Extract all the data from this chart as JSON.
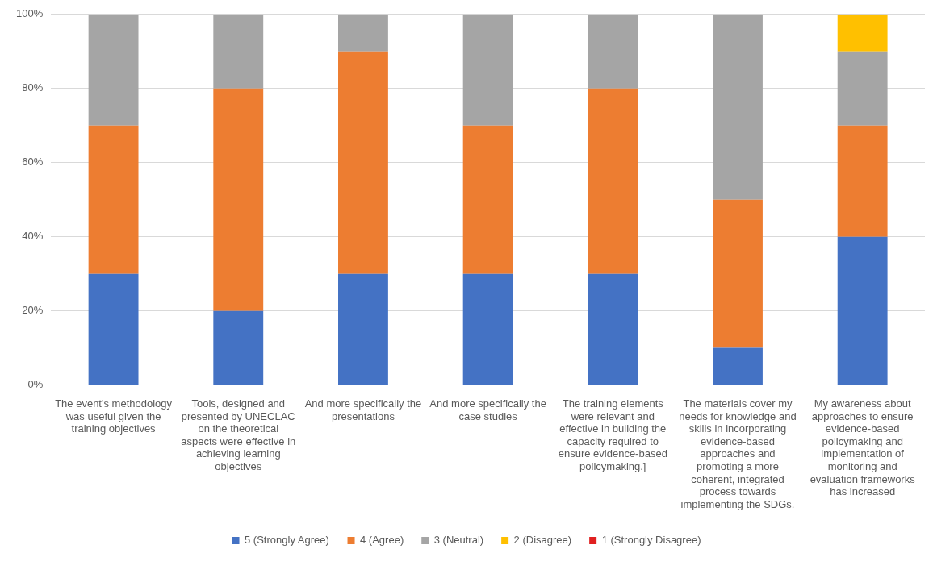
{
  "chart_data": {
    "type": "bar",
    "stacked": true,
    "categories": [
      "The event's methodology was useful given the training objectives",
      "Tools, designed and presented by UNECLAC on the theoretical aspects were effective in achieving learning objectives",
      "And more specifically the presentations",
      "And more specifically the case studies",
      "The training elements were relevant and effective in building the capacity required to ensure evidence-based policymaking.]",
      "The materials cover my needs for knowledge and skills in incorporating evidence-based approaches and promoting a more coherent, integrated process towards implementing the SDGs.",
      "My awareness about approaches to ensure evidence-based policymaking and implementation of monitoring and evaluation frameworks has increased"
    ],
    "series": [
      {
        "name": "5 (Strongly Agree)",
        "color": "#4472c4",
        "values": [
          30,
          20,
          30,
          30,
          30,
          10,
          40
        ]
      },
      {
        "name": "4 (Agree)",
        "color": "#ed7d31",
        "values": [
          40,
          60,
          60,
          40,
          50,
          40,
          30
        ]
      },
      {
        "name": "3 (Neutral)",
        "color": "#a5a5a5",
        "values": [
          30,
          20,
          10,
          30,
          20,
          50,
          20
        ]
      },
      {
        "name": "2 (Disagree)",
        "color": "#ffc000",
        "values": [
          0,
          0,
          0,
          0,
          0,
          0,
          10
        ]
      },
      {
        "name": "1 (Strongly Disagree)",
        "color": "#e02020",
        "values": [
          0,
          0,
          0,
          0,
          0,
          0,
          0
        ]
      }
    ],
    "ylim": [
      0,
      100
    ],
    "yticks": [
      {
        "value": 0,
        "label": "0%"
      },
      {
        "value": 20,
        "label": "20%"
      },
      {
        "value": 40,
        "label": "40%"
      },
      {
        "value": 60,
        "label": "60%"
      },
      {
        "value": 80,
        "label": "80%"
      },
      {
        "value": 100,
        "label": "100%"
      }
    ],
    "grid": "y",
    "legend": "bottom"
  }
}
